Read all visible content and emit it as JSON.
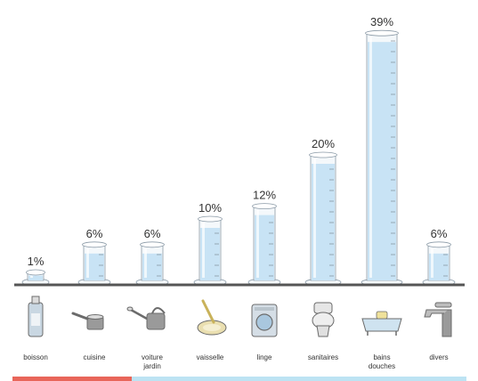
{
  "chart_data": {
    "type": "bar",
    "categories": [
      [
        "boisson"
      ],
      [
        "cuisine"
      ],
      [
        "voiture",
        "jardin"
      ],
      [
        "vaisselle"
      ],
      [
        "linge"
      ],
      [
        "sanitaires"
      ],
      [
        "bains",
        "douches"
      ],
      [
        "divers"
      ]
    ],
    "values": [
      1,
      6,
      6,
      10,
      12,
      20,
      39,
      6
    ],
    "value_labels": [
      "1%",
      "6%",
      "6%",
      "10%",
      "12%",
      "20%",
      "39%",
      "6%"
    ],
    "ylim": [
      0,
      40
    ],
    "icons": [
      "bottle-icon",
      "saucepan-icon",
      "watering-can-icon",
      "dish-sponge-icon",
      "washing-machine-icon",
      "toilet-icon",
      "bathtub-icon",
      "faucet-icon"
    ],
    "colors": {
      "water": "#c8e3f5",
      "glass": "#f4f8fb",
      "glass_stroke": "#8a99a6",
      "baseline": "#555555",
      "bar_left": "#e8665a",
      "bar_right": "#bde3f3"
    }
  }
}
